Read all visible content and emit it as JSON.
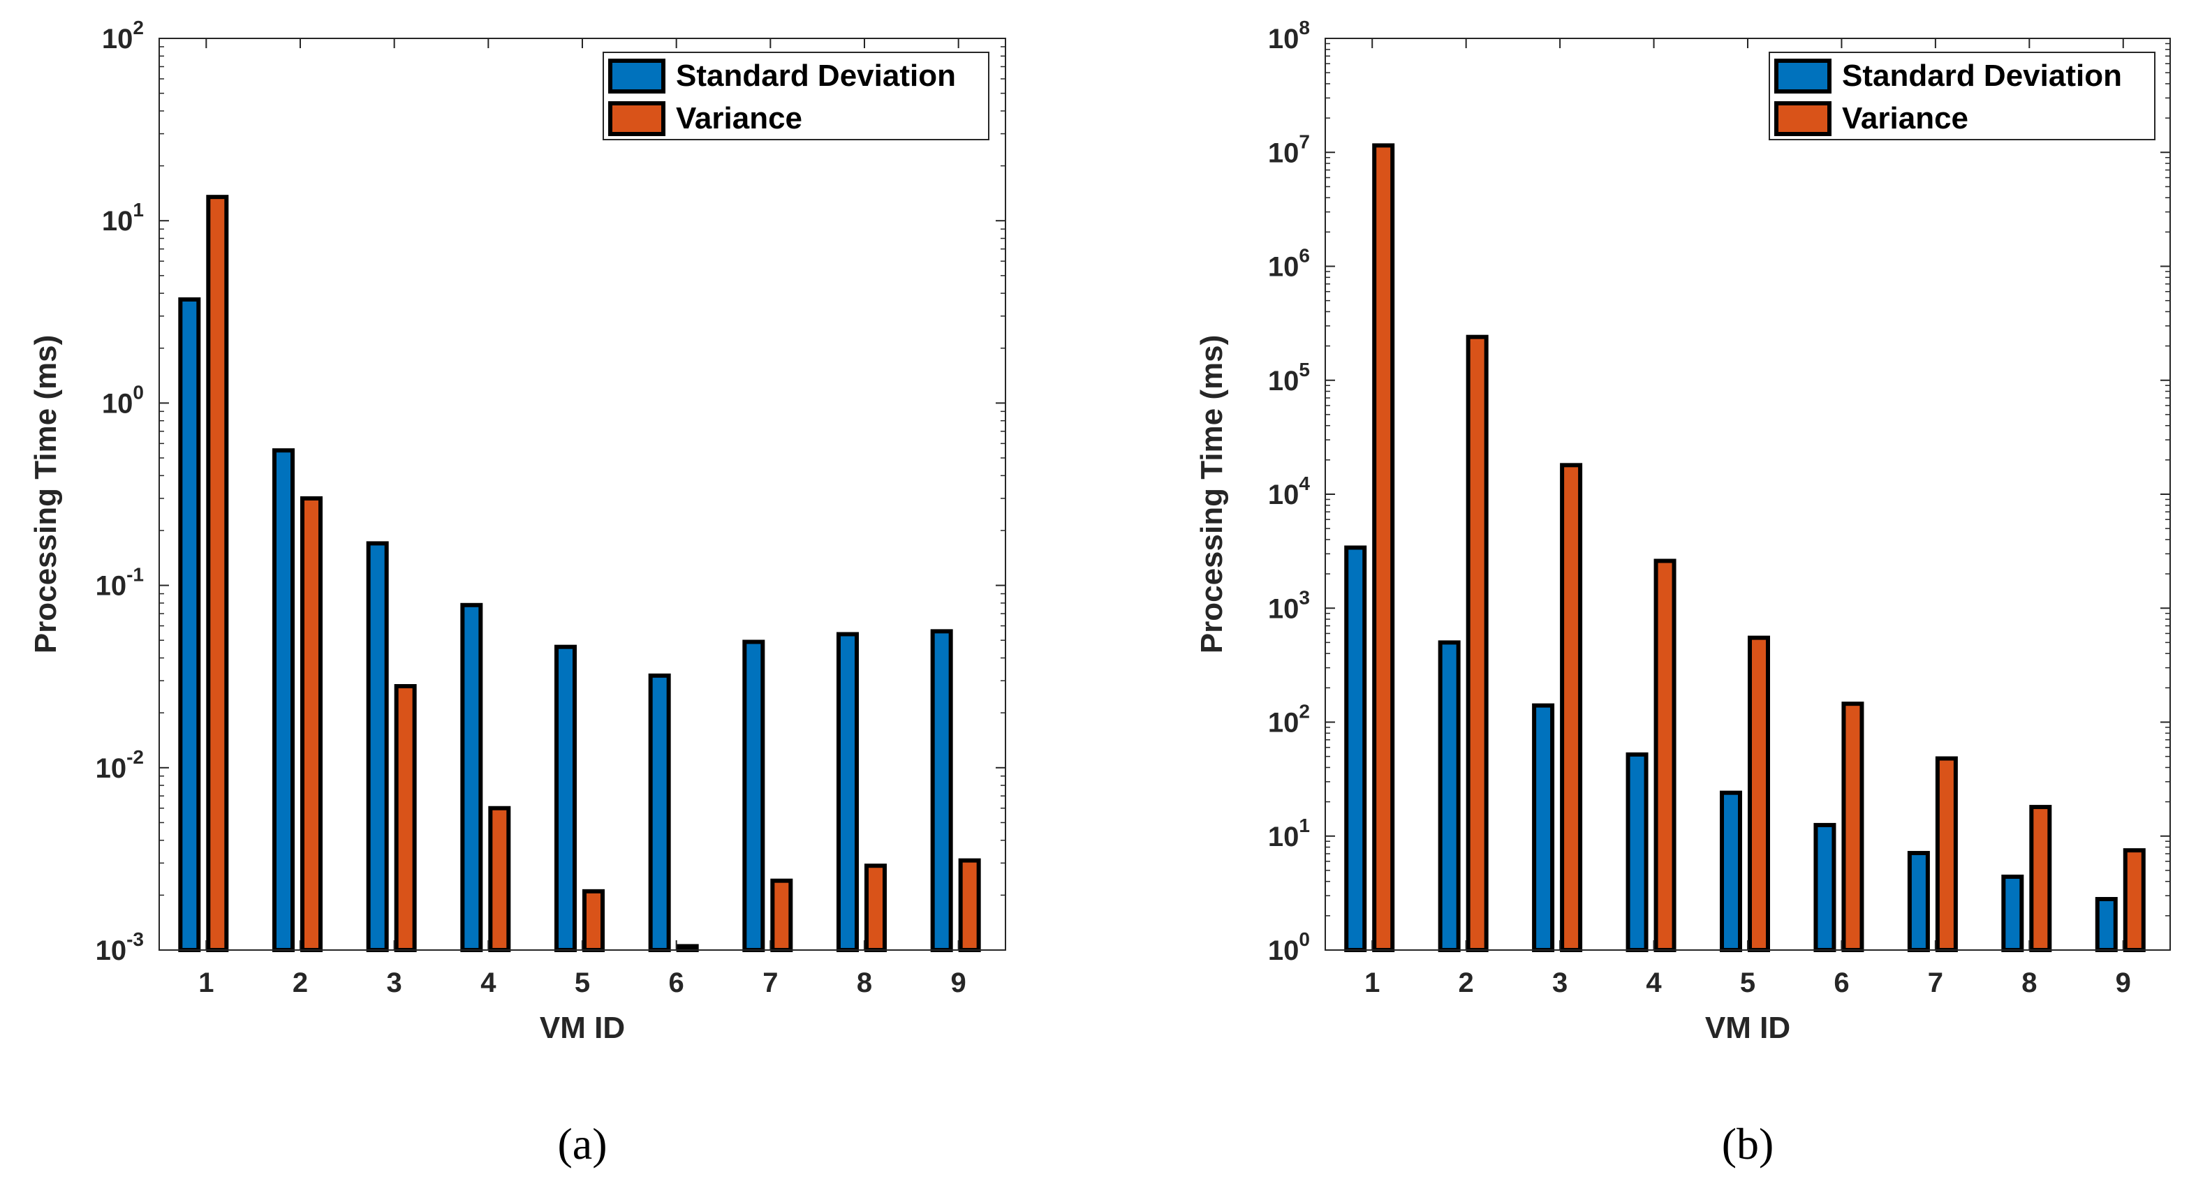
{
  "colors": {
    "series1": "#0072BD",
    "series2": "#D95319",
    "edge": "#000000",
    "axis": "#262626"
  },
  "chart_data": [
    {
      "type": "bar",
      "caption": "(a)",
      "xlabel": "VM ID",
      "ylabel": "Processing Time (ms)",
      "yscale": "log",
      "ylim": [
        0.001,
        100
      ],
      "categories": [
        "1",
        "2",
        "3",
        "4",
        "5",
        "6",
        "7",
        "8",
        "9"
      ],
      "yticks": [
        {
          "base": "10",
          "exp": "-3"
        },
        {
          "base": "10",
          "exp": "-2"
        },
        {
          "base": "10",
          "exp": "-1"
        },
        {
          "base": "10",
          "exp": "0"
        },
        {
          "base": "10",
          "exp": "1"
        },
        {
          "base": "10",
          "exp": "2"
        }
      ],
      "legend_position": "top-right",
      "series": [
        {
          "name": "Standard Deviation",
          "values": [
            3.7,
            0.55,
            0.17,
            0.078,
            0.046,
            0.032,
            0.049,
            0.054,
            0.056
          ]
        },
        {
          "name": "Variance",
          "values": [
            13.5,
            0.3,
            0.028,
            0.006,
            0.0021,
            0.00105,
            0.0024,
            0.0029,
            0.0031
          ]
        }
      ]
    },
    {
      "type": "bar",
      "caption": "(b)",
      "xlabel": "VM ID",
      "ylabel": "Processing Time (ms)",
      "yscale": "log",
      "ylim": [
        1,
        100000000
      ],
      "categories": [
        "1",
        "2",
        "3",
        "4",
        "5",
        "6",
        "7",
        "8",
        "9"
      ],
      "yticks": [
        {
          "base": "10",
          "exp": "0"
        },
        {
          "base": "10",
          "exp": "1"
        },
        {
          "base": "10",
          "exp": "2"
        },
        {
          "base": "10",
          "exp": "3"
        },
        {
          "base": "10",
          "exp": "4"
        },
        {
          "base": "10",
          "exp": "5"
        },
        {
          "base": "10",
          "exp": "6"
        },
        {
          "base": "10",
          "exp": "7"
        },
        {
          "base": "10",
          "exp": "8"
        }
      ],
      "legend_position": "top-right",
      "series": [
        {
          "name": "Standard Deviation",
          "values": [
            3400,
            500,
            140,
            52,
            24,
            12.5,
            7.1,
            4.4,
            2.8
          ]
        },
        {
          "name": "Variance",
          "values": [
            11500000,
            240000,
            18000,
            2600,
            550,
            145,
            48,
            18,
            7.5
          ]
        }
      ]
    }
  ]
}
